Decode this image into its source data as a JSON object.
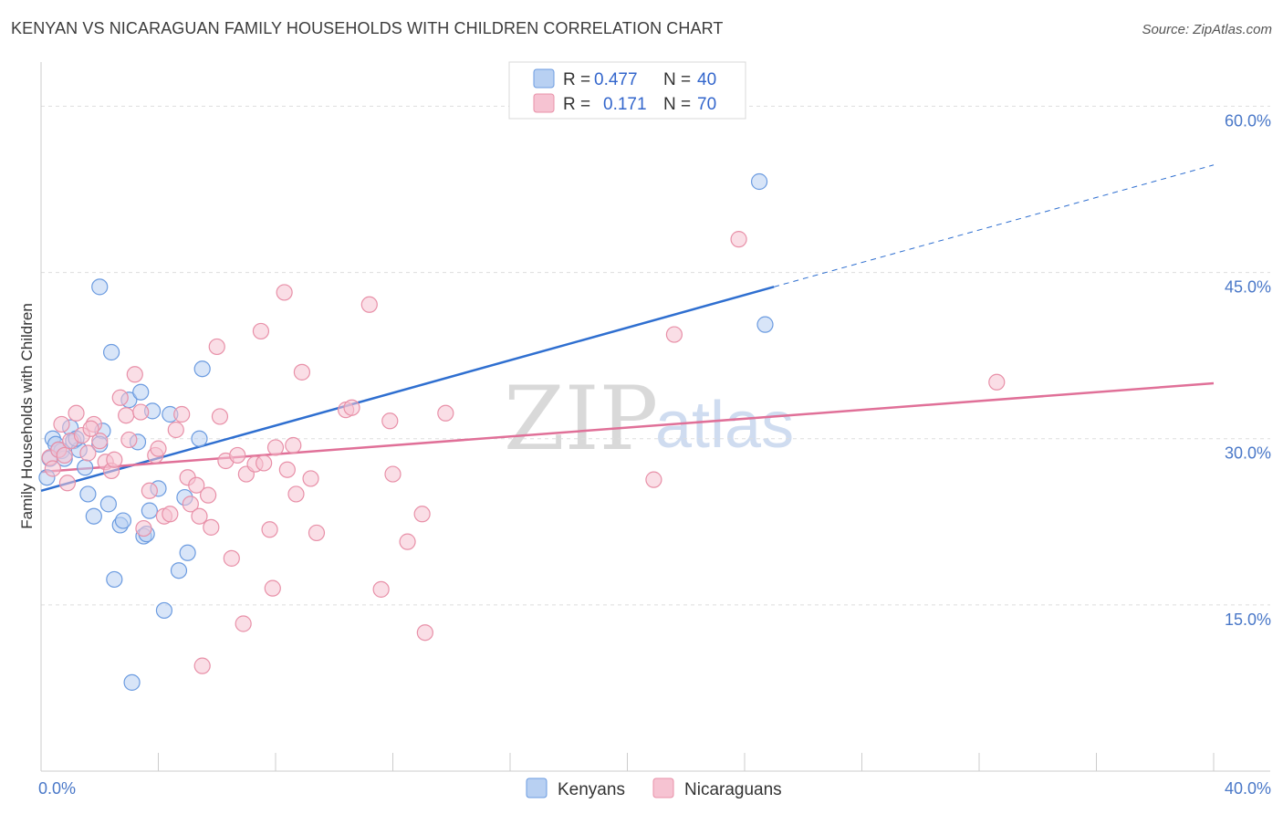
{
  "title": "KENYAN VS NICARAGUAN FAMILY HOUSEHOLDS WITH CHILDREN CORRELATION CHART",
  "source": "Source: ZipAtlas.com",
  "watermark": {
    "zip": "ZIP",
    "atlas": "atlas"
  },
  "chart_data": {
    "type": "scatter",
    "title": "KENYAN VS NICARAGUAN FAMILY HOUSEHOLDS WITH CHILDREN CORRELATION CHART",
    "xlabel": "",
    "ylabel": "Family Households with Children",
    "xlim": [
      0,
      40
    ],
    "ylim": [
      0,
      63
    ],
    "x_ticks": [
      "0.0%",
      "40.0%"
    ],
    "y_ticks": [
      {
        "value": 15,
        "label": "15.0%"
      },
      {
        "value": 30,
        "label": "30.0%"
      },
      {
        "value": 45,
        "label": "45.0%"
      },
      {
        "value": 60,
        "label": "60.0%"
      }
    ],
    "grid": true,
    "legend": {
      "placement": "top-center",
      "entries": [
        {
          "r_label": "R =",
          "r": "0.477",
          "n_label": "N =",
          "n": "40"
        },
        {
          "r_label": "R =",
          "r": "0.171",
          "n_label": "N =",
          "n": "70"
        }
      ]
    },
    "series": [
      {
        "name": "Kenyans",
        "color": "#6b9be0",
        "fill": "#b8d0f2",
        "line_color": "#2f6fd0",
        "trend": {
          "x0": 0,
          "y0": 25.3,
          "x1": 25,
          "y1": 43.7,
          "dash_to_x": 40,
          "dash_to_y": 54.7
        },
        "points": [
          [
            0.2,
            26.5
          ],
          [
            0.3,
            28.2
          ],
          [
            0.4,
            30.0
          ],
          [
            0.5,
            29.5
          ],
          [
            0.7,
            28.9
          ],
          [
            0.8,
            28.2
          ],
          [
            1.0,
            31.0
          ],
          [
            1.1,
            29.8
          ],
          [
            1.3,
            29.0
          ],
          [
            1.5,
            27.4
          ],
          [
            1.6,
            25.0
          ],
          [
            1.8,
            23.0
          ],
          [
            2.0,
            43.7
          ],
          [
            2.1,
            30.7
          ],
          [
            2.3,
            24.1
          ],
          [
            2.4,
            37.8
          ],
          [
            2.5,
            17.3
          ],
          [
            2.7,
            22.2
          ],
          [
            2.8,
            22.6
          ],
          [
            3.0,
            33.5
          ],
          [
            3.1,
            8.0
          ],
          [
            3.3,
            29.7
          ],
          [
            3.4,
            34.2
          ],
          [
            3.5,
            21.2
          ],
          [
            3.6,
            21.4
          ],
          [
            3.7,
            23.5
          ],
          [
            3.8,
            32.5
          ],
          [
            4.0,
            25.5
          ],
          [
            4.2,
            14.5
          ],
          [
            4.4,
            32.2
          ],
          [
            4.7,
            18.1
          ],
          [
            4.9,
            24.7
          ],
          [
            5.0,
            19.7
          ],
          [
            5.4,
            30.0
          ],
          [
            5.5,
            36.3
          ],
          [
            24.5,
            53.2
          ],
          [
            24.7,
            40.3
          ],
          [
            0.6,
            29.0
          ],
          [
            1.2,
            30.0
          ],
          [
            2.0,
            29.5
          ]
        ]
      },
      {
        "name": "Nicaraguans",
        "color": "#e890a8",
        "fill": "#f6c3d2",
        "line_color": "#e07098",
        "trend": {
          "x0": 0,
          "y0": 27.0,
          "x1": 40,
          "y1": 35.0
        },
        "points": [
          [
            0.3,
            28.3
          ],
          [
            0.4,
            27.3
          ],
          [
            0.6,
            29.0
          ],
          [
            0.7,
            31.3
          ],
          [
            0.9,
            26.0
          ],
          [
            1.0,
            29.8
          ],
          [
            1.2,
            32.3
          ],
          [
            1.4,
            30.3
          ],
          [
            1.6,
            28.7
          ],
          [
            1.8,
            31.3
          ],
          [
            2.0,
            29.8
          ],
          [
            2.2,
            27.9
          ],
          [
            2.4,
            27.1
          ],
          [
            2.5,
            28.1
          ],
          [
            2.7,
            33.7
          ],
          [
            2.9,
            32.1
          ],
          [
            3.0,
            29.9
          ],
          [
            3.2,
            35.8
          ],
          [
            3.4,
            32.4
          ],
          [
            3.5,
            21.9
          ],
          [
            3.7,
            25.3
          ],
          [
            3.9,
            28.5
          ],
          [
            4.0,
            29.1
          ],
          [
            4.2,
            23.0
          ],
          [
            4.4,
            23.2
          ],
          [
            4.6,
            30.8
          ],
          [
            4.8,
            32.2
          ],
          [
            5.0,
            26.5
          ],
          [
            5.1,
            24.1
          ],
          [
            5.3,
            25.8
          ],
          [
            5.4,
            23.0
          ],
          [
            5.7,
            24.9
          ],
          [
            5.8,
            22.0
          ],
          [
            6.0,
            38.3
          ],
          [
            6.1,
            32.0
          ],
          [
            6.3,
            28.0
          ],
          [
            6.5,
            19.2
          ],
          [
            6.7,
            28.5
          ],
          [
            6.9,
            13.3
          ],
          [
            7.0,
            26.8
          ],
          [
            7.3,
            27.7
          ],
          [
            7.5,
            39.7
          ],
          [
            7.6,
            27.8
          ],
          [
            7.8,
            21.8
          ],
          [
            7.9,
            16.5
          ],
          [
            8.0,
            29.2
          ],
          [
            8.3,
            43.2
          ],
          [
            8.4,
            27.2
          ],
          [
            8.6,
            29.4
          ],
          [
            8.7,
            25.0
          ],
          [
            8.9,
            36.0
          ],
          [
            9.2,
            26.4
          ],
          [
            9.4,
            21.5
          ],
          [
            10.4,
            32.6
          ],
          [
            10.6,
            32.8
          ],
          [
            11.2,
            42.1
          ],
          [
            11.6,
            16.4
          ],
          [
            12.0,
            26.8
          ],
          [
            11.9,
            31.6
          ],
          [
            12.5,
            20.7
          ],
          [
            13.0,
            23.2
          ],
          [
            13.1,
            12.5
          ],
          [
            13.8,
            32.3
          ],
          [
            5.5,
            9.5
          ],
          [
            20.9,
            26.3
          ],
          [
            21.6,
            39.4
          ],
          [
            23.8,
            48.0
          ],
          [
            32.6,
            35.1
          ],
          [
            0.8,
            28.5
          ],
          [
            1.7,
            30.9
          ]
        ]
      }
    ]
  },
  "bottom_legend": [
    {
      "label": "Kenyans"
    },
    {
      "label": "Nicaraguans"
    }
  ]
}
